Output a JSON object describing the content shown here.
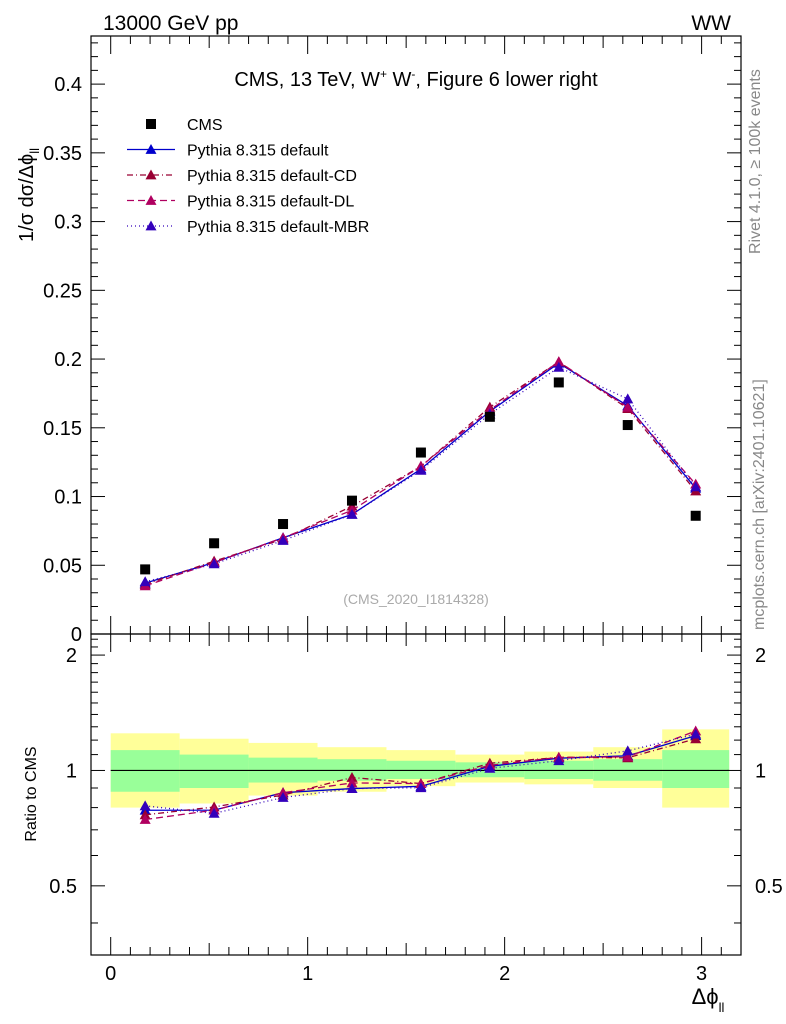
{
  "header": {
    "left": "13000 GeV pp",
    "right": "WW"
  },
  "side_labels": {
    "rivet": "Rivet 4.1.0, ≥ 100k events",
    "mcplots": "mcplots.cern.ch [arXiv:2401.10621]"
  },
  "analysis_id": "(CMS_2020_I1814328)",
  "chart_data": {
    "type": "line",
    "title_parts": {
      "prefix": "CMS, 13 TeV, W",
      "sup1": "+",
      "mid": " W",
      "sup2": "-",
      "suffix": ", Figure 6 lower right"
    },
    "xlabel": "Δϕ",
    "xlabel_sub": "ll",
    "ylabel": "1/σ dσ/Δϕ",
    "ylabel_sub": "ll",
    "ratio_ylabel": "Ratio to CMS",
    "xlim": [
      -0.1,
      3.2
    ],
    "ylim": [
      0,
      0.435
    ],
    "ratio_ylim": [
      0.33,
      2.27
    ],
    "x_ticks": [
      0,
      1,
      2,
      3
    ],
    "x_tick_labels": [
      "0",
      "1",
      "2",
      "3"
    ],
    "y_ticks": [
      0,
      0.05,
      0.1,
      0.15,
      0.2,
      0.25,
      0.3,
      0.35,
      0.4
    ],
    "y_tick_labels": [
      "0",
      "0.05",
      "0.1",
      "0.15",
      "0.2",
      "0.25",
      "0.3",
      "0.35",
      "0.4"
    ],
    "ratio_ticks": [
      0.5,
      1,
      2
    ],
    "ratio_tick_labels": [
      "0.5",
      "1",
      "2"
    ],
    "bin_edges": [
      0,
      0.35,
      0.7,
      1.05,
      1.4,
      1.75,
      2.1,
      2.45,
      2.8,
      3.14
    ],
    "x": [
      0.175,
      0.525,
      0.875,
      1.225,
      1.575,
      1.925,
      2.275,
      2.625,
      2.97
    ],
    "data": {
      "name": "CMS",
      "values": [
        0.047,
        0.066,
        0.08,
        0.097,
        0.132,
        0.158,
        0.183,
        0.152,
        0.086
      ]
    },
    "band_inner": [
      [
        0.88,
        1.13
      ],
      [
        0.9,
        1.1
      ],
      [
        0.93,
        1.08
      ],
      [
        0.94,
        1.07
      ],
      [
        0.95,
        1.06
      ],
      [
        0.96,
        1.05
      ],
      [
        0.95,
        1.06
      ],
      [
        0.94,
        1.07
      ],
      [
        0.9,
        1.13
      ]
    ],
    "band_outer": [
      [
        0.8,
        1.25
      ],
      [
        0.82,
        1.21
      ],
      [
        0.86,
        1.18
      ],
      [
        0.88,
        1.15
      ],
      [
        0.91,
        1.13
      ],
      [
        0.93,
        1.1
      ],
      [
        0.92,
        1.12
      ],
      [
        0.9,
        1.15
      ],
      [
        0.8,
        1.28
      ]
    ],
    "series": [
      {
        "name": "Pythia 8.315 default",
        "color": "#0000cc",
        "dash": "",
        "values": [
          0.037,
          0.052,
          0.07,
          0.087,
          0.12,
          0.162,
          0.197,
          0.166,
          0.106
        ]
      },
      {
        "name": "Pythia 8.315 default-CD",
        "color": "#990033",
        "dash": "6,3,1,3",
        "values": [
          0.036,
          0.053,
          0.069,
          0.093,
          0.122,
          0.165,
          0.198,
          0.164,
          0.104
        ]
      },
      {
        "name": "Pythia 8.315 default-DL",
        "color": "#b00060",
        "dash": "7,4",
        "values": [
          0.035,
          0.052,
          0.07,
          0.09,
          0.122,
          0.163,
          0.198,
          0.165,
          0.109
        ]
      },
      {
        "name": "Pythia 8.315 default-MBR",
        "color": "#3300bb",
        "dash": "1,3",
        "values": [
          0.038,
          0.051,
          0.068,
          0.087,
          0.119,
          0.16,
          0.194,
          0.171,
          0.107
        ]
      }
    ],
    "ratio_ref": 1
  }
}
